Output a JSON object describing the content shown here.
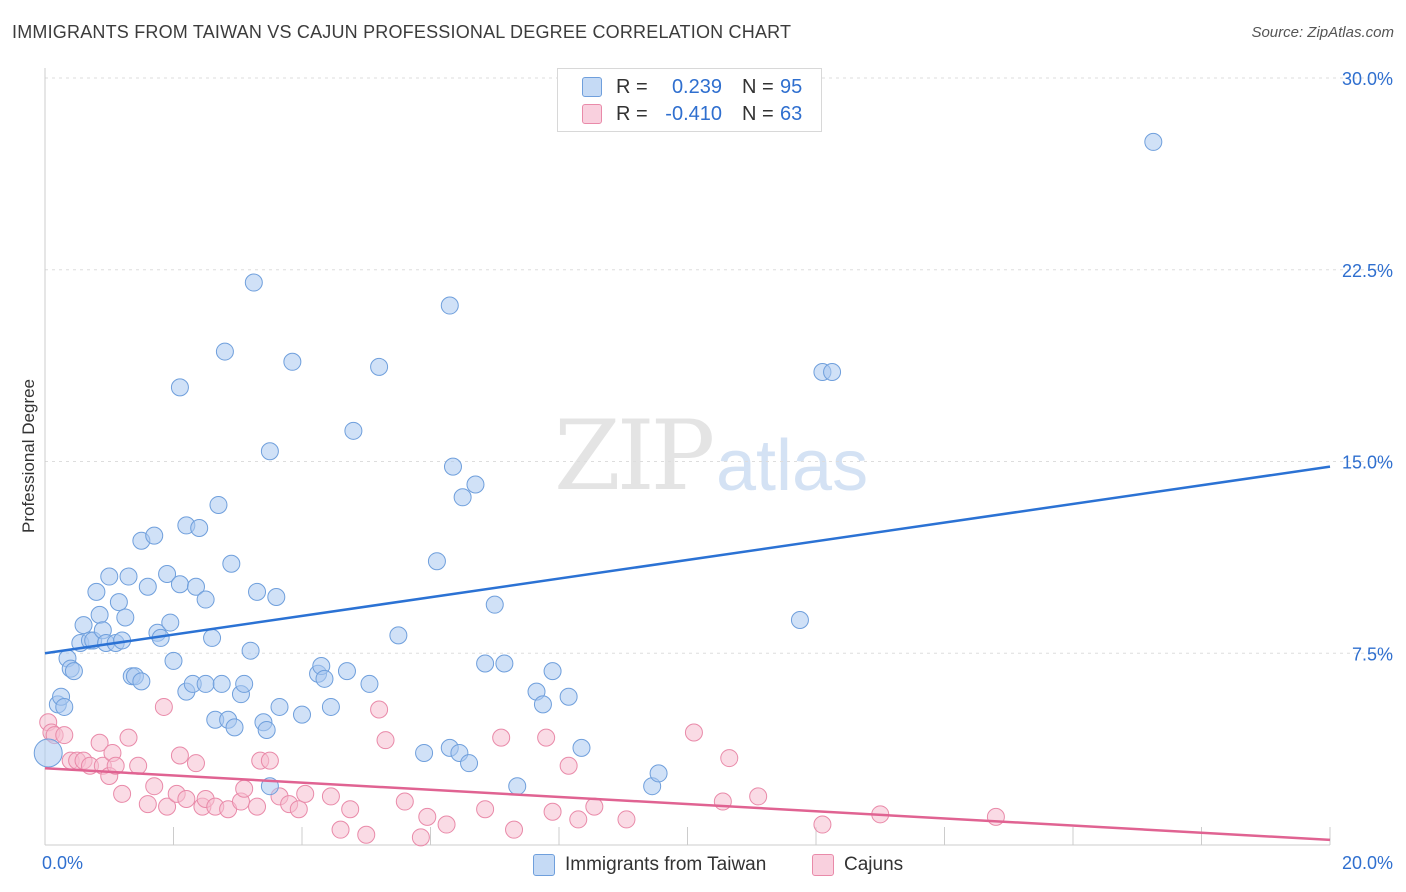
{
  "header": {
    "title": "IMMIGRANTS FROM TAIWAN VS CAJUN PROFESSIONAL DEGREE CORRELATION CHART",
    "source": "Source: ZipAtlas.com"
  },
  "watermark": {
    "zip": "ZIP",
    "atlas": "atlas"
  },
  "legend": {
    "r_label": "R =",
    "n_label": "N =",
    "series1": {
      "r": "0.239",
      "n": "95"
    },
    "series2": {
      "r": "-0.410",
      "n": "63"
    }
  },
  "bottom_legend": {
    "series1": "Immigrants from Taiwan",
    "series2": "Cajuns"
  },
  "colors": {
    "taiwan_fill": "#a9c8f0",
    "taiwan_stroke": "#6f9fdc",
    "taiwan_line": "#2b72d4",
    "cajun_fill": "#f6bed0",
    "cajun_stroke": "#e98aa9",
    "cajun_line": "#e06392",
    "grid": "#dddddd",
    "tick_label": "#2f6fcf"
  },
  "chart_data": {
    "type": "scatter",
    "title": "IMMIGRANTS FROM TAIWAN VS CAJUN PROFESSIONAL DEGREE CORRELATION CHART",
    "xlabel": "",
    "ylabel": "Professional Degree",
    "xlim": [
      0,
      20
    ],
    "ylim": [
      0,
      30
    ],
    "x_tick_labels": [
      "0.0%",
      "20.0%"
    ],
    "y_ticks": [
      7.5,
      15.0,
      22.5,
      30.0
    ],
    "y_tick_labels": [
      "7.5%",
      "15.0%",
      "22.5%",
      "30.0%"
    ],
    "series": [
      {
        "name": "Immigrants from Taiwan",
        "r": 0.239,
        "n": 95,
        "trend": [
          [
            0,
            7.5
          ],
          [
            20,
            14.8
          ]
        ],
        "points": [
          [
            0.2,
            5.5
          ],
          [
            0.25,
            5.8
          ],
          [
            0.3,
            5.4
          ],
          [
            0.35,
            7.3
          ],
          [
            0.4,
            6.9
          ],
          [
            0.45,
            6.8
          ],
          [
            0.55,
            7.9
          ],
          [
            0.6,
            8.6
          ],
          [
            0.7,
            8.0
          ],
          [
            0.75,
            8.0
          ],
          [
            0.8,
            9.9
          ],
          [
            0.85,
            9.0
          ],
          [
            0.9,
            8.4
          ],
          [
            0.95,
            7.9
          ],
          [
            1.0,
            10.5
          ],
          [
            1.1,
            7.9
          ],
          [
            1.15,
            9.5
          ],
          [
            1.2,
            8.0
          ],
          [
            1.25,
            8.9
          ],
          [
            1.3,
            10.5
          ],
          [
            1.35,
            6.6
          ],
          [
            1.4,
            6.6
          ],
          [
            1.5,
            6.4
          ],
          [
            1.5,
            11.9
          ],
          [
            1.6,
            10.1
          ],
          [
            1.7,
            12.1
          ],
          [
            1.75,
            8.3
          ],
          [
            1.8,
            8.1
          ],
          [
            1.9,
            10.6
          ],
          [
            1.95,
            8.7
          ],
          [
            2.0,
            7.2
          ],
          [
            2.1,
            10.2
          ],
          [
            2.1,
            17.9
          ],
          [
            2.2,
            6.0
          ],
          [
            2.2,
            12.5
          ],
          [
            2.3,
            6.3
          ],
          [
            2.35,
            10.1
          ],
          [
            2.4,
            12.4
          ],
          [
            2.5,
            9.6
          ],
          [
            2.5,
            6.3
          ],
          [
            2.6,
            8.1
          ],
          [
            2.65,
            4.9
          ],
          [
            2.7,
            13.3
          ],
          [
            2.75,
            6.3
          ],
          [
            2.8,
            19.3
          ],
          [
            2.85,
            4.9
          ],
          [
            2.9,
            11.0
          ],
          [
            2.95,
            4.6
          ],
          [
            3.05,
            5.9
          ],
          [
            3.1,
            6.3
          ],
          [
            3.2,
            7.6
          ],
          [
            3.25,
            22.0
          ],
          [
            3.3,
            9.9
          ],
          [
            3.4,
            4.8
          ],
          [
            3.45,
            4.5
          ],
          [
            3.5,
            2.3
          ],
          [
            3.5,
            15.4
          ],
          [
            3.6,
            9.7
          ],
          [
            3.65,
            5.4
          ],
          [
            3.85,
            18.9
          ],
          [
            4.0,
            5.1
          ],
          [
            4.25,
            6.7
          ],
          [
            4.3,
            7.0
          ],
          [
            4.35,
            6.5
          ],
          [
            4.45,
            5.4
          ],
          [
            4.7,
            6.8
          ],
          [
            4.8,
            16.2
          ],
          [
            5.05,
            6.3
          ],
          [
            5.2,
            18.7
          ],
          [
            5.5,
            8.2
          ],
          [
            5.9,
            3.6
          ],
          [
            6.1,
            11.1
          ],
          [
            6.3,
            21.1
          ],
          [
            6.3,
            3.8
          ],
          [
            6.35,
            14.8
          ],
          [
            6.45,
            3.6
          ],
          [
            6.5,
            13.6
          ],
          [
            6.6,
            3.2
          ],
          [
            6.7,
            14.1
          ],
          [
            6.85,
            7.1
          ],
          [
            7.0,
            9.4
          ],
          [
            7.15,
            7.1
          ],
          [
            7.35,
            2.3
          ],
          [
            7.65,
            6.0
          ],
          [
            7.75,
            5.5
          ],
          [
            7.9,
            6.8
          ],
          [
            8.15,
            5.8
          ],
          [
            8.35,
            3.8
          ],
          [
            9.45,
            2.3
          ],
          [
            9.55,
            2.8
          ],
          [
            11.75,
            8.8
          ],
          [
            12.1,
            18.5
          ],
          [
            12.25,
            18.5
          ],
          [
            17.25,
            27.5
          ],
          [
            0.05,
            3.6
          ]
        ]
      },
      {
        "name": "Cajuns",
        "r": -0.41,
        "n": 63,
        "trend": [
          [
            0,
            3.0
          ],
          [
            20,
            0.2
          ]
        ],
        "points": [
          [
            0.05,
            4.8
          ],
          [
            0.1,
            4.4
          ],
          [
            0.15,
            4.3
          ],
          [
            0.3,
            4.3
          ],
          [
            0.4,
            3.3
          ],
          [
            0.5,
            3.3
          ],
          [
            0.6,
            3.3
          ],
          [
            0.7,
            3.1
          ],
          [
            0.85,
            4.0
          ],
          [
            0.9,
            3.1
          ],
          [
            1.0,
            2.7
          ],
          [
            1.05,
            3.6
          ],
          [
            1.1,
            3.1
          ],
          [
            1.2,
            2.0
          ],
          [
            1.3,
            4.2
          ],
          [
            1.45,
            3.1
          ],
          [
            1.6,
            1.6
          ],
          [
            1.7,
            2.3
          ],
          [
            1.85,
            5.4
          ],
          [
            1.9,
            1.5
          ],
          [
            2.05,
            2.0
          ],
          [
            2.1,
            3.5
          ],
          [
            2.2,
            1.8
          ],
          [
            2.35,
            3.2
          ],
          [
            2.45,
            1.5
          ],
          [
            2.5,
            1.8
          ],
          [
            2.65,
            1.5
          ],
          [
            2.85,
            1.4
          ],
          [
            3.05,
            1.7
          ],
          [
            3.1,
            2.2
          ],
          [
            3.3,
            1.5
          ],
          [
            3.35,
            3.3
          ],
          [
            3.5,
            3.3
          ],
          [
            3.65,
            1.9
          ],
          [
            3.8,
            1.6
          ],
          [
            3.95,
            1.4
          ],
          [
            4.05,
            2.0
          ],
          [
            4.45,
            1.9
          ],
          [
            4.6,
            0.6
          ],
          [
            4.75,
            1.4
          ],
          [
            5.0,
            0.4
          ],
          [
            5.2,
            5.3
          ],
          [
            5.3,
            4.1
          ],
          [
            5.6,
            1.7
          ],
          [
            5.85,
            0.3
          ],
          [
            5.95,
            1.1
          ],
          [
            6.25,
            0.8
          ],
          [
            6.85,
            1.4
          ],
          [
            7.1,
            4.2
          ],
          [
            7.3,
            0.6
          ],
          [
            7.8,
            4.2
          ],
          [
            7.9,
            1.3
          ],
          [
            8.15,
            3.1
          ],
          [
            8.3,
            1.0
          ],
          [
            8.55,
            1.5
          ],
          [
            9.05,
            1.0
          ],
          [
            10.1,
            4.4
          ],
          [
            10.55,
            1.7
          ],
          [
            10.65,
            3.4
          ],
          [
            11.1,
            1.9
          ],
          [
            12.1,
            0.8
          ],
          [
            13.0,
            1.2
          ],
          [
            14.8,
            1.1
          ]
        ]
      }
    ]
  }
}
